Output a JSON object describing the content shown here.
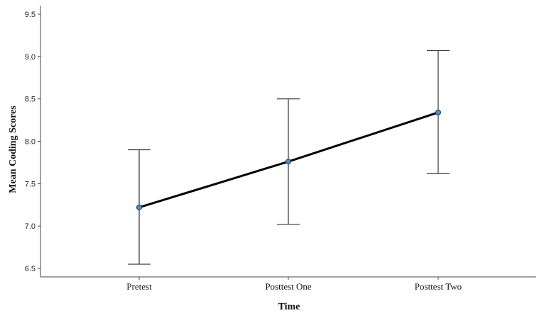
{
  "chart_data": {
    "type": "line",
    "categories": [
      "Pretest",
      "Posttest One",
      "Posttest Two"
    ],
    "series": [
      {
        "values": [
          7.22,
          7.76,
          8.34
        ],
        "error_low": [
          6.55,
          7.02,
          7.62
        ],
        "error_high": [
          7.9,
          8.5,
          9.07
        ]
      }
    ],
    "xlabel": "Time",
    "ylabel": "Mean Coding Scores",
    "ylim": [
      6.4,
      9.6
    ],
    "yticks": [
      "6.5",
      "7.0",
      "7.5",
      "8.0",
      "8.5",
      "9.0",
      "9.5"
    ],
    "grid": false,
    "legend": "none",
    "colors": {
      "line": "#000000",
      "marker": "#4a90c8",
      "marker_edge": "#1a3a5c",
      "error_bar": "#333333",
      "axis": "#444444"
    }
  }
}
